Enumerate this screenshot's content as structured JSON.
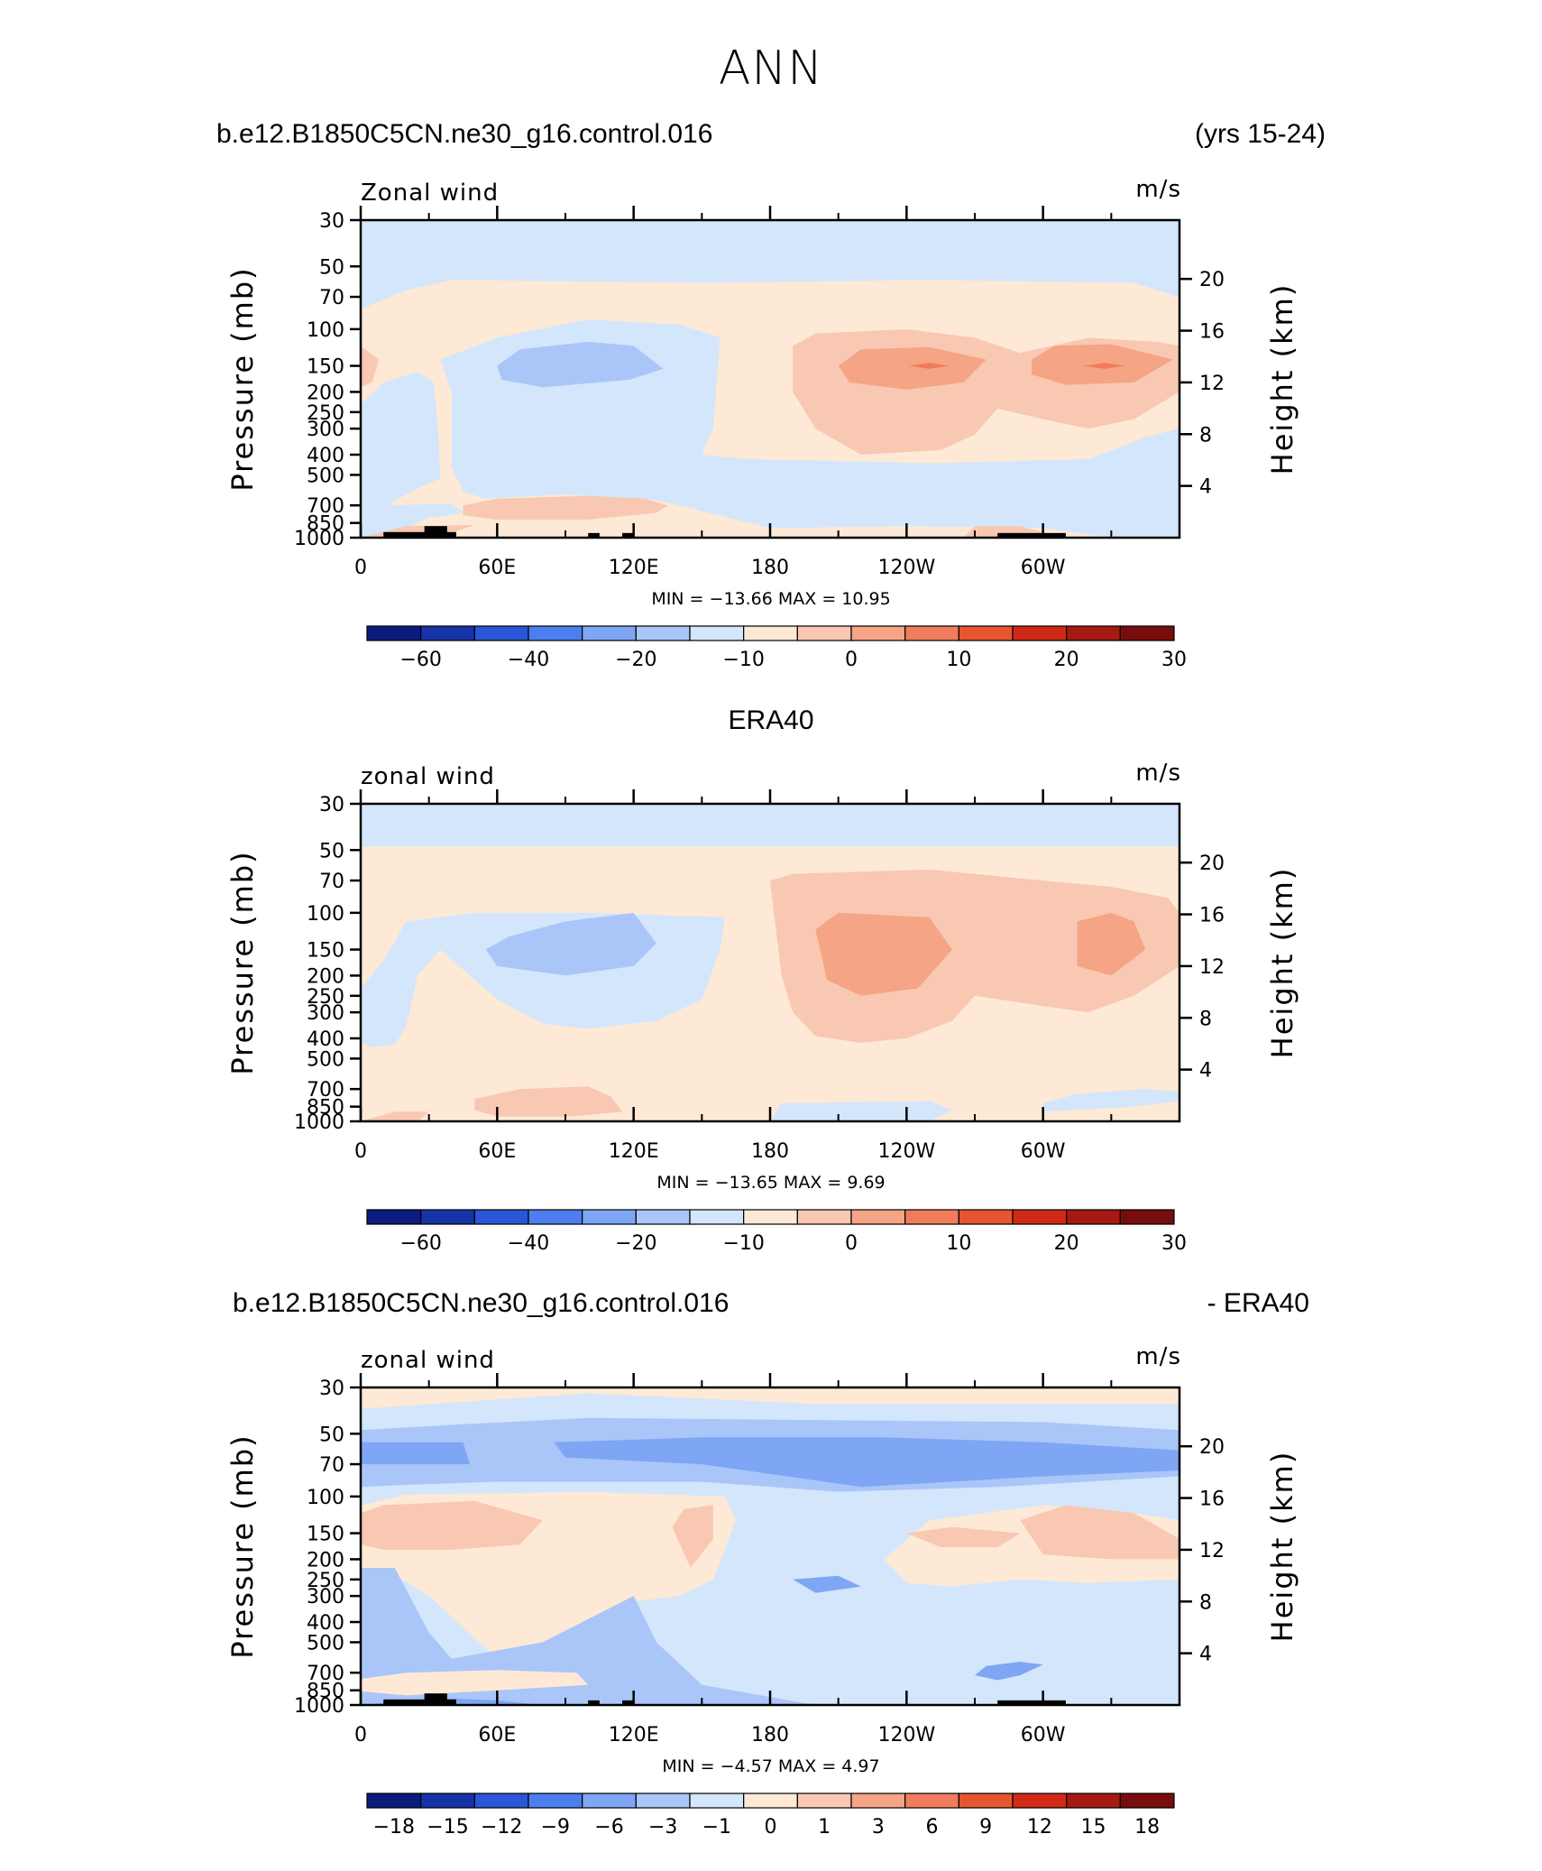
{
  "main_title": "ANN",
  "panels": [
    {
      "left_title": "b.e12.B1850C5CN.ne30_g16.control.016",
      "center_title": "",
      "right_title": "(yrs 15-24)",
      "field_label": "Zonal wind",
      "units": "m/s",
      "minmax": "MIN =  −13.66   MAX =    10.95"
    },
    {
      "left_title": "",
      "center_title": "ERA40",
      "right_title": "",
      "field_label": "zonal wind",
      "units": "m/s",
      "minmax": "MIN =  −13.65   MAX =    9.69"
    },
    {
      "left_title": "b.e12.B1850C5CN.ne30_g16.control.016",
      "center_title": "",
      "right_title": "- ERA40",
      "field_label": "zonal wind",
      "units": "m/s",
      "minmax": "MIN =   −4.57   MAX =    4.97"
    }
  ],
  "chart_data": [
    {
      "type": "heatmap",
      "title": "b.e12.B1850C5CN.ne30_g16.control.016",
      "subtitle": "(yrs 15-24)",
      "field": "Zonal wind",
      "units": "m/s",
      "xlabel": "",
      "ylabel": "Pressure (mb)",
      "y2label": "Height (km)",
      "x_ticks": [
        "0",
        "60E",
        "120E",
        "180",
        "120W",
        "60W"
      ],
      "y_ticks": [
        "30",
        "50",
        "70",
        "100",
        "150",
        "200",
        "250",
        "300",
        "400",
        "500",
        "700",
        "850",
        "1000"
      ],
      "y2_ticks": [
        "20",
        "16",
        "12",
        "8",
        "4"
      ],
      "xlim": [
        0,
        360
      ],
      "ylim": [
        1000,
        30
      ],
      "y_scale": "log",
      "min": -13.66,
      "max": 10.95,
      "colorbar_labels": [
        "-60",
        "-40",
        "-20",
        "-10",
        "0",
        "10",
        "20",
        "30"
      ],
      "colors": [
        "#0c1c7e",
        "#1633a8",
        "#2a56d8",
        "#4d7ef0",
        "#7ea6f5",
        "#aac6f8",
        "#d3e6fb",
        "#fde9d6",
        "#f9c8b2",
        "#f5a485",
        "#f07c5c",
        "#e65530",
        "#d02a17",
        "#a51a12",
        "#780d0d"
      ]
    },
    {
      "type": "heatmap",
      "title": "ERA40",
      "field": "zonal wind",
      "units": "m/s",
      "ylabel": "Pressure (mb)",
      "y2label": "Height (km)",
      "x_ticks": [
        "0",
        "60E",
        "120E",
        "180",
        "120W",
        "60W"
      ],
      "y_ticks": [
        "30",
        "50",
        "70",
        "100",
        "150",
        "200",
        "250",
        "300",
        "400",
        "500",
        "700",
        "850",
        "1000"
      ],
      "y2_ticks": [
        "20",
        "16",
        "12",
        "8",
        "4"
      ],
      "xlim": [
        0,
        360
      ],
      "ylim": [
        1000,
        30
      ],
      "y_scale": "log",
      "min": -13.65,
      "max": 9.69,
      "colorbar_labels": [
        "-60",
        "-40",
        "-20",
        "-10",
        "0",
        "10",
        "20",
        "30"
      ]
    },
    {
      "type": "heatmap",
      "title": "b.e12.B1850C5CN.ne30_g16.control.016",
      "subtitle": "- ERA40",
      "field": "zonal wind",
      "units": "m/s",
      "ylabel": "Pressure (mb)",
      "y2label": "Height (km)",
      "x_ticks": [
        "0",
        "60E",
        "120E",
        "180",
        "120W",
        "60W"
      ],
      "y_ticks": [
        "30",
        "50",
        "70",
        "100",
        "150",
        "200",
        "250",
        "300",
        "400",
        "500",
        "700",
        "850",
        "1000"
      ],
      "y2_ticks": [
        "20",
        "16",
        "12",
        "8",
        "4"
      ],
      "xlim": [
        0,
        360
      ],
      "ylim": [
        1000,
        30
      ],
      "y_scale": "log",
      "min": -4.57,
      "max": 4.97,
      "colorbar_labels": [
        "-18",
        "-15",
        "-12",
        "-9",
        "-6",
        "-3",
        "-1",
        "0",
        "1",
        "3",
        "6",
        "9",
        "12",
        "15",
        "18"
      ]
    }
  ]
}
